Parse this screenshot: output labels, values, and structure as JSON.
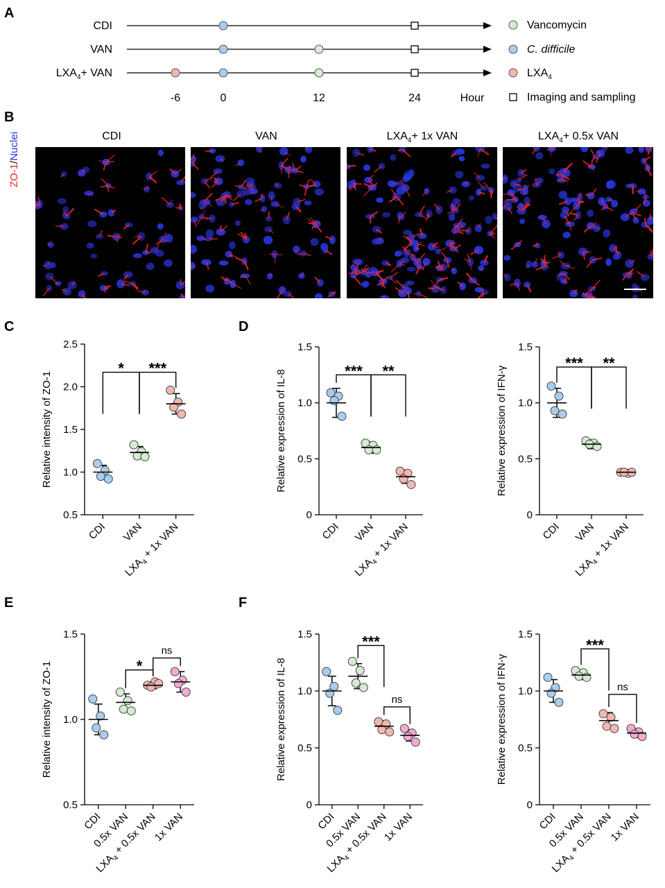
{
  "panels": {
    "A": "A",
    "B": "B",
    "C": "C",
    "D": "D",
    "E": "E",
    "F": "F"
  },
  "timeline": {
    "rows": [
      {
        "label": "CDI",
        "sub": "",
        "suffix": "",
        "events": [
          {
            "t": 0,
            "kind": "cdiff"
          },
          {
            "t": 24,
            "kind": "imaging"
          }
        ]
      },
      {
        "label": "VAN",
        "sub": "",
        "suffix": "",
        "events": [
          {
            "t": 0,
            "kind": "cdiff"
          },
          {
            "t": 12,
            "kind": "vancomycin"
          },
          {
            "t": 24,
            "kind": "imaging"
          }
        ]
      },
      {
        "label": "LXA",
        "sub": "4",
        "suffix": "+ VAN",
        "events": [
          {
            "t": -6,
            "kind": "lxa4"
          },
          {
            "t": 0,
            "kind": "cdiff"
          },
          {
            "t": 12,
            "kind": "vancomycin"
          },
          {
            "t": 24,
            "kind": "imaging"
          }
        ]
      }
    ],
    "ticks": [
      "-6",
      "0",
      "12",
      "24"
    ],
    "unit": "Hour",
    "legend": [
      {
        "kind": "vancomycin",
        "text": "Vancomycin",
        "sub": "",
        "italic": false
      },
      {
        "kind": "cdiff",
        "text": "C. difficile",
        "sub": "",
        "italic": true
      },
      {
        "kind": "lxa4",
        "text": "LXA",
        "sub": "4",
        "italic": false
      },
      {
        "kind": "imaging",
        "text": "Imaging and sampling",
        "sub": "",
        "italic": false
      }
    ]
  },
  "colors": {
    "vancomycin": "#d4ecd0",
    "cdiff": "#a8cdee",
    "lxa4": "#f3b6b0",
    "lxa4_pink": "#f5a9d4",
    "zo1": "#e8262a",
    "nuclei": "#2834d8"
  },
  "micrographs": {
    "stain_label_red": "ZO-1",
    "stain_label_sep": "/",
    "stain_label_blue": "Nuclei",
    "titles": [
      {
        "pre": "CDI",
        "sub": "",
        "post": ""
      },
      {
        "pre": "VAN",
        "sub": "",
        "post": ""
      },
      {
        "pre": "LXA",
        "sub": "4",
        "post": "+ 1x VAN"
      },
      {
        "pre": "LXA",
        "sub": "4",
        "post": "+ 0.5x VAN"
      }
    ]
  },
  "chart_data": [
    {
      "panel": "C",
      "type": "scatter",
      "ylabel": "Relative intensity of ZO-1",
      "ylim": [
        0.5,
        2.5
      ],
      "yticks": [
        "0.5",
        "1.0",
        "1.5",
        "2.0",
        "2.5"
      ],
      "categories": [
        {
          "pre": "CDI",
          "sub": "",
          "post": ""
        },
        {
          "pre": "VAN",
          "sub": "",
          "post": ""
        },
        {
          "pre": "LXA",
          "sub": "4",
          "post": " + 1x VAN"
        }
      ],
      "series": [
        {
          "color": "cdiff",
          "points": [
            1.1,
            1.02,
            0.95,
            0.92
          ],
          "mean": 1.0,
          "sd": 0.08
        },
        {
          "color": "vancomycin",
          "points": [
            1.32,
            1.24,
            1.19,
            1.18
          ],
          "mean": 1.23,
          "sd": 0.07
        },
        {
          "color": "lxa4",
          "points": [
            1.96,
            1.82,
            1.76,
            1.68
          ],
          "mean": 1.8,
          "sd": 0.12
        }
      ],
      "brackets": [
        {
          "from": 0,
          "to": 1,
          "y": 2.17,
          "label": "*"
        },
        {
          "from": 1,
          "to": 2,
          "y": 2.17,
          "label": "***"
        }
      ]
    },
    {
      "panel": "D",
      "type": "scatter",
      "ylabel": "Relative expression of IL-8",
      "ylim": [
        0,
        1.5
      ],
      "yticks": [
        "0",
        "0.5",
        "1.0",
        "1.5"
      ],
      "categories": [
        {
          "pre": "CDI",
          "sub": "",
          "post": ""
        },
        {
          "pre": "VAN",
          "sub": "",
          "post": ""
        },
        {
          "pre": "LXA",
          "sub": "4",
          "post": " + 1x VAN"
        }
      ],
      "series": [
        {
          "color": "cdiff",
          "points": [
            1.09,
            1.06,
            1.02,
            0.88
          ],
          "mean": 1.0,
          "sd": 0.13
        },
        {
          "color": "vancomycin",
          "points": [
            0.64,
            0.62,
            0.58,
            0.58
          ],
          "mean": 0.6,
          "sd": 0.05
        },
        {
          "color": "lxa4",
          "points": [
            0.39,
            0.37,
            0.32,
            0.27
          ],
          "mean": 0.34,
          "sd": 0.06
        }
      ],
      "brackets": [
        {
          "from": 0,
          "to": 1,
          "y": 1.25,
          "label": "***"
        },
        {
          "from": 1,
          "to": 2,
          "y": 1.25,
          "label": "**"
        }
      ]
    },
    {
      "panel": "D2",
      "type": "scatter",
      "ylabel": "Relative expression of IFN-γ",
      "ylim": [
        0,
        1.5
      ],
      "yticks": [
        "0",
        "0.5",
        "1.0",
        "1.5"
      ],
      "categories": [
        {
          "pre": "CDI",
          "sub": "",
          "post": ""
        },
        {
          "pre": "VAN",
          "sub": "",
          "post": ""
        },
        {
          "pre": "LXA",
          "sub": "4",
          "post": " + 1x VAN"
        }
      ],
      "series": [
        {
          "color": "cdiff",
          "points": [
            1.15,
            1.06,
            0.93,
            0.9
          ],
          "mean": 1.0,
          "sd": 0.13
        },
        {
          "color": "vancomycin",
          "points": [
            0.66,
            0.64,
            0.63,
            0.61
          ],
          "mean": 0.63,
          "sd": 0.04
        },
        {
          "color": "lxa4",
          "points": [
            0.38,
            0.37,
            0.38,
            0.38
          ],
          "mean": 0.38,
          "sd": 0.01
        }
      ],
      "brackets": [
        {
          "from": 0,
          "to": 1,
          "y": 1.32,
          "label": "***"
        },
        {
          "from": 1,
          "to": 2,
          "y": 1.32,
          "label": "**"
        }
      ]
    },
    {
      "panel": "E",
      "type": "scatter",
      "ylabel": "Relative intensity of ZO-1",
      "ylim": [
        0.5,
        1.5
      ],
      "yticks": [
        "0.5",
        "1.0",
        "1.5"
      ],
      "categories": [
        {
          "pre": "CDI",
          "sub": "",
          "post": ""
        },
        {
          "pre": "0.5x VAN",
          "sub": "",
          "post": ""
        },
        {
          "pre": "LXA",
          "sub": "4",
          "post": " + 0.5x VAN"
        },
        {
          "pre": "1x VAN",
          "sub": "",
          "post": ""
        }
      ],
      "series": [
        {
          "color": "cdiff",
          "points": [
            1.12,
            1.02,
            0.95,
            0.91
          ],
          "mean": 1.0,
          "sd": 0.09
        },
        {
          "color": "vancomycin",
          "points": [
            1.16,
            1.11,
            1.06,
            1.05
          ],
          "mean": 1.1,
          "sd": 0.05
        },
        {
          "color": "lxa4",
          "points": [
            1.2,
            1.22,
            1.19,
            1.21
          ],
          "mean": 1.2,
          "sd": 0.02
        },
        {
          "color": "lxa4_pink",
          "points": [
            1.28,
            1.23,
            1.21,
            1.16
          ],
          "mean": 1.22,
          "sd": 0.06
        }
      ],
      "brackets": [
        {
          "from": 1,
          "to": 2,
          "y": 1.29,
          "label": "*"
        },
        {
          "from": 2,
          "to": 3,
          "y": 1.36,
          "label": "ns"
        }
      ]
    },
    {
      "panel": "F",
      "type": "scatter",
      "ylabel": "Relative expression of IL-8",
      "ylim": [
        0,
        1.5
      ],
      "yticks": [
        "0",
        "0.5",
        "1.0",
        "1.5"
      ],
      "categories": [
        {
          "pre": "CDI",
          "sub": "",
          "post": ""
        },
        {
          "pre": "0.5x VAN",
          "sub": "",
          "post": ""
        },
        {
          "pre": "LXA",
          "sub": "4",
          "post": " + 0.5x VAN"
        },
        {
          "pre": "1x VAN",
          "sub": "",
          "post": ""
        }
      ],
      "series": [
        {
          "color": "cdiff",
          "points": [
            1.17,
            1.04,
            0.98,
            0.83
          ],
          "mean": 1.0,
          "sd": 0.13
        },
        {
          "color": "vancomycin",
          "points": [
            1.26,
            1.18,
            1.07,
            1.03
          ],
          "mean": 1.13,
          "sd": 0.11
        },
        {
          "color": "lxa4",
          "points": [
            0.73,
            0.71,
            0.66,
            0.64
          ],
          "mean": 0.69,
          "sd": 0.05
        },
        {
          "color": "lxa4_pink",
          "points": [
            0.67,
            0.63,
            0.6,
            0.55
          ],
          "mean": 0.61,
          "sd": 0.05
        }
      ],
      "brackets": [
        {
          "from": 1,
          "to": 2,
          "y": 1.4,
          "label": "***"
        },
        {
          "from": 2,
          "to": 3,
          "y": 0.86,
          "label": "ns"
        }
      ]
    },
    {
      "panel": "F2",
      "type": "scatter",
      "ylabel": "Relative expression of IFN-γ",
      "ylim": [
        0,
        1.5
      ],
      "yticks": [
        "0",
        "0.5",
        "1.0",
        "1.5"
      ],
      "categories": [
        {
          "pre": "CDI",
          "sub": "",
          "post": ""
        },
        {
          "pre": "0.5x VAN",
          "sub": "",
          "post": ""
        },
        {
          "pre": "LXA",
          "sub": "4",
          "post": " + 0.5x VAN"
        },
        {
          "pre": "1x VAN",
          "sub": "",
          "post": ""
        }
      ],
      "series": [
        {
          "color": "cdiff",
          "points": [
            1.12,
            1.03,
            0.98,
            0.9
          ],
          "mean": 1.0,
          "sd": 0.1
        },
        {
          "color": "vancomycin",
          "points": [
            1.18,
            1.16,
            1.13,
            1.12
          ],
          "mean": 1.14,
          "sd": 0.04
        },
        {
          "color": "lxa4",
          "points": [
            0.8,
            0.77,
            0.69,
            0.67
          ],
          "mean": 0.74,
          "sd": 0.07
        },
        {
          "color": "lxa4_pink",
          "points": [
            0.67,
            0.64,
            0.62,
            0.6
          ],
          "mean": 0.63,
          "sd": 0.04
        }
      ],
      "brackets": [
        {
          "from": 1,
          "to": 2,
          "y": 1.37,
          "label": "***"
        },
        {
          "from": 2,
          "to": 3,
          "y": 0.97,
          "label": "ns"
        }
      ]
    }
  ]
}
